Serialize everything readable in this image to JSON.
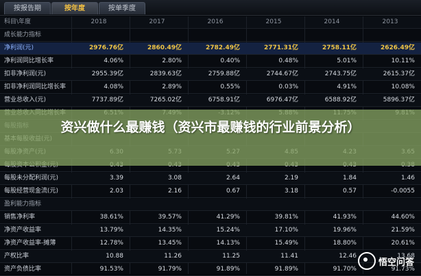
{
  "tabs": [
    "按报告期",
    "按年度",
    "按单季度"
  ],
  "columns": [
    "科目\\年度",
    "2018",
    "2017",
    "2016",
    "2015",
    "2014",
    "2013"
  ],
  "rows": [
    {
      "label": "成长能力指标",
      "values": [
        "",
        "",
        "",
        "",
        "",
        ""
      ],
      "type": "section"
    },
    {
      "label": "净利润(元)",
      "values": [
        "2976.76亿",
        "2860.49亿",
        "2782.49亿",
        "2771.31亿",
        "2758.11亿",
        "2626.49亿"
      ],
      "type": "hl"
    },
    {
      "label": "净利润同比增长率",
      "values": [
        "4.06%",
        "2.80%",
        "0.40%",
        "0.48%",
        "5.01%",
        "10.11%"
      ],
      "type": "data"
    },
    {
      "label": "扣非净利润(元)",
      "values": [
        "2955.39亿",
        "2839.63亿",
        "2759.88亿",
        "2744.67亿",
        "2743.75亿",
        "2615.37亿"
      ],
      "type": "data"
    },
    {
      "label": "扣非净利润同比增长率",
      "values": [
        "4.08%",
        "2.89%",
        "0.55%",
        "0.03%",
        "4.91%",
        "10.08%"
      ],
      "type": "data"
    },
    {
      "label": "营业总收入(元)",
      "values": [
        "7737.89亿",
        "7265.02亿",
        "6758.91亿",
        "6976.47亿",
        "6588.92亿",
        "5896.37亿"
      ],
      "type": "data"
    },
    {
      "label": "营业总收入同比增长率",
      "values": [
        "6.51%",
        "7.49%",
        "-3.12%",
        "5.88%",
        "11.75%",
        "9.81%"
      ],
      "type": "data"
    },
    {
      "label": "每股指标",
      "values": [
        "",
        "",
        "",
        "",
        "",
        ""
      ],
      "type": "section"
    },
    {
      "label": "基本每股收益(元)",
      "values": [
        "",
        "",
        "",
        "",
        "",
        ""
      ],
      "type": "data"
    },
    {
      "label": "每股净资产(元)",
      "values": [
        "6.30",
        "5.73",
        "5.27",
        "4.85",
        "4.23",
        "3.65"
      ],
      "type": "data"
    },
    {
      "label": "每股资本公积金(元)",
      "values": [
        "0.43",
        "0.43",
        "0.43",
        "0.43",
        "0.43",
        "0.38"
      ],
      "type": "data"
    },
    {
      "label": "每股未分配利润(元)",
      "values": [
        "3.39",
        "3.08",
        "2.64",
        "2.19",
        "1.84",
        "1.46"
      ],
      "type": "data"
    },
    {
      "label": "每股经营现金流(元)",
      "values": [
        "2.03",
        "2.16",
        "0.67",
        "3.18",
        "0.57",
        "-0.0055"
      ],
      "type": "data"
    },
    {
      "label": "盈利能力指标",
      "values": [
        "",
        "",
        "",
        "",
        "",
        ""
      ],
      "type": "section"
    },
    {
      "label": "销售净利率",
      "values": [
        "38.61%",
        "39.57%",
        "41.29%",
        "39.81%",
        "41.93%",
        "44.60%"
      ],
      "type": "data"
    },
    {
      "label": "净资产收益率",
      "values": [
        "13.79%",
        "14.35%",
        "15.24%",
        "17.10%",
        "19.96%",
        "21.59%"
      ],
      "type": "data"
    },
    {
      "label": "净资产收益率-摊薄",
      "values": [
        "12.78%",
        "13.45%",
        "14.13%",
        "15.49%",
        "18.80%",
        "20.61%"
      ],
      "type": "data"
    },
    {
      "label": "产权比率",
      "values": [
        "10.88",
        "11.26",
        "11.25",
        "11.41",
        "12.46",
        "13.68"
      ],
      "type": "data"
    },
    {
      "label": "资产负债比率",
      "values": [
        "91.53%",
        "91.79%",
        "91.89%",
        "91.89%",
        "91.70%",
        "91.73%"
      ],
      "type": "data"
    }
  ],
  "overlay": {
    "title": "资兴做什么最赚钱（资兴市最赚钱的行业前景分析）"
  },
  "watermark": {
    "text": "悟空问答"
  }
}
